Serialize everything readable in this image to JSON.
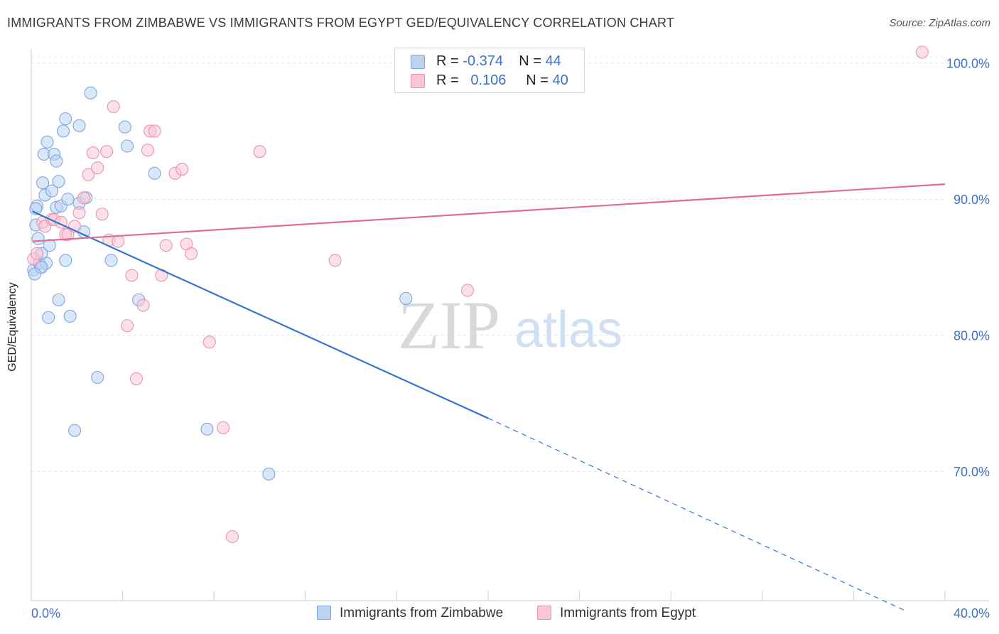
{
  "title": "IMMIGRANTS FROM ZIMBABWE VS IMMIGRANTS FROM EGYPT GED/EQUIVALENCY CORRELATION CHART",
  "source": "Source: ZipAtlas.com",
  "watermark": {
    "zip": "ZIP",
    "atlas": "atlas"
  },
  "legend_stats": [
    {
      "r_label": "R =",
      "r_value": "-0.374",
      "n_label": "N =",
      "n_value": "44",
      "color": "#bcd3f3"
    },
    {
      "r_label": "R =",
      "r_value": "0.106",
      "n_label": "N =",
      "n_value": "40",
      "color": "#f9c6d6"
    }
  ],
  "chart_data": {
    "type": "scatter",
    "title": "IMMIGRANTS FROM ZIMBABWE VS IMMIGRANTS FROM EGYPT GED/EQUIVALENCY CORRELATION CHART",
    "xlabel": "",
    "ylabel": "GED/Equivalency",
    "xlim": [
      0,
      40
    ],
    "ylim": [
      60.5,
      101.5
    ],
    "x_tick_labels": [
      "0.0%",
      "40.0%"
    ],
    "y_ticks": [
      70,
      80,
      90,
      100
    ],
    "y_tick_labels": [
      "70.0%",
      "80.0%",
      "90.0%",
      "100.0%"
    ],
    "grid": true,
    "legend_position": "bottom",
    "series": [
      {
        "name": "Immigrants from Zimbabwe",
        "color": "#7ea6e0",
        "fill": "#bcd3f3",
        "line_color": "#3273d3",
        "trend": {
          "x_solid": [
            0.05,
            20.0
          ],
          "y_solid": [
            89.1,
            73.9
          ],
          "x_dashed": [
            20.0,
            38.2
          ],
          "y_dashed": [
            73.9,
            59.8
          ]
        },
        "points": [
          [
            0.1,
            84.8
          ],
          [
            0.2,
            88.1
          ],
          [
            0.25,
            89.5
          ],
          [
            0.3,
            87.1
          ],
          [
            0.35,
            85.3
          ],
          [
            0.4,
            85.0
          ],
          [
            0.5,
            91.2
          ],
          [
            0.55,
            93.3
          ],
          [
            0.6,
            90.3
          ],
          [
            0.65,
            85.3
          ],
          [
            0.7,
            94.2
          ],
          [
            0.75,
            81.3
          ],
          [
            0.8,
            86.6
          ],
          [
            0.9,
            90.6
          ],
          [
            1.0,
            93.3
          ],
          [
            1.1,
            89.4
          ],
          [
            1.1,
            92.8
          ],
          [
            1.2,
            91.3
          ],
          [
            1.2,
            82.6
          ],
          [
            1.3,
            89.5
          ],
          [
            1.4,
            95.0
          ],
          [
            1.5,
            85.5
          ],
          [
            1.5,
            95.9
          ],
          [
            1.6,
            90.0
          ],
          [
            1.7,
            81.4
          ],
          [
            1.9,
            73.0
          ],
          [
            2.1,
            89.7
          ],
          [
            2.1,
            95.4
          ],
          [
            2.3,
            87.6
          ],
          [
            2.4,
            90.1
          ],
          [
            2.6,
            97.8
          ],
          [
            2.9,
            76.9
          ],
          [
            3.5,
            85.5
          ],
          [
            4.1,
            95.3
          ],
          [
            4.2,
            93.9
          ],
          [
            4.7,
            82.6
          ],
          [
            5.4,
            91.9
          ],
          [
            7.7,
            73.1
          ],
          [
            10.4,
            69.8
          ],
          [
            0.45,
            85.0
          ],
          [
            0.45,
            86.0
          ],
          [
            0.15,
            84.5
          ],
          [
            16.4,
            82.7
          ],
          [
            0.2,
            89.3
          ]
        ]
      },
      {
        "name": "Immigrants from Egypt",
        "color": "#ea93b0",
        "fill": "#f9c6d6",
        "line_color": "#e06b95",
        "trend": {
          "x_solid": [
            0.05,
            40.0
          ],
          "y_solid": [
            86.9,
            91.1
          ]
        },
        "points": [
          [
            0.1,
            85.6
          ],
          [
            0.25,
            86.0
          ],
          [
            0.5,
            88.3
          ],
          [
            0.6,
            88.0
          ],
          [
            0.9,
            88.5
          ],
          [
            1.0,
            88.5
          ],
          [
            1.3,
            88.3
          ],
          [
            1.5,
            87.4
          ],
          [
            1.6,
            87.4
          ],
          [
            1.9,
            88.0
          ],
          [
            2.1,
            89.0
          ],
          [
            2.3,
            90.1
          ],
          [
            2.5,
            91.8
          ],
          [
            2.7,
            93.4
          ],
          [
            2.9,
            92.3
          ],
          [
            3.1,
            88.9
          ],
          [
            3.3,
            93.5
          ],
          [
            3.4,
            87.0
          ],
          [
            3.6,
            96.8
          ],
          [
            3.8,
            86.9
          ],
          [
            4.2,
            80.7
          ],
          [
            4.4,
            84.4
          ],
          [
            4.6,
            76.8
          ],
          [
            4.9,
            82.2
          ],
          [
            5.1,
            93.6
          ],
          [
            5.2,
            95.0
          ],
          [
            5.4,
            95.0
          ],
          [
            5.7,
            84.4
          ],
          [
            5.9,
            86.6
          ],
          [
            6.3,
            91.9
          ],
          [
            6.6,
            92.2
          ],
          [
            6.8,
            86.7
          ],
          [
            7.0,
            86.0
          ],
          [
            7.8,
            79.5
          ],
          [
            8.4,
            73.2
          ],
          [
            8.8,
            65.2
          ],
          [
            10.0,
            93.5
          ],
          [
            13.3,
            85.5
          ],
          [
            19.1,
            83.3
          ],
          [
            39.0,
            100.8
          ]
        ]
      }
    ]
  }
}
